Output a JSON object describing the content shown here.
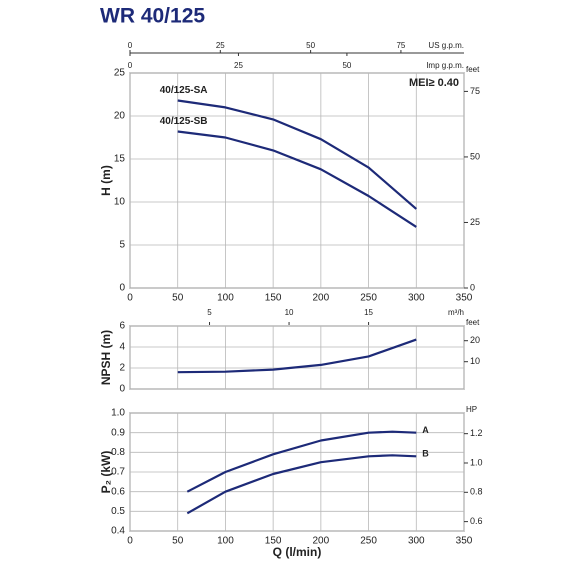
{
  "chart_data": [
    {
      "type": "line",
      "title": "WR 40/125",
      "ylabel": "H (m)",
      "annotation": "MEI≥ 0.40",
      "xlim": [
        0,
        350
      ],
      "xticks": [
        0,
        50,
        100,
        150,
        200,
        250,
        300,
        350
      ],
      "ylim": [
        0,
        25
      ],
      "yticks": [
        0,
        5,
        10,
        15,
        20,
        25
      ],
      "y2label": "feet",
      "y2lim": [
        0,
        82.02
      ],
      "y2ticks": [
        0,
        25,
        50,
        75
      ],
      "x2_axes": [
        {
          "label": "US g.p.m.",
          "xlim": [
            0,
            92.46
          ],
          "xticks": [
            0,
            25,
            50,
            75
          ]
        },
        {
          "label": "Imp g.p.m.",
          "xlim": [
            0,
            76.99
          ],
          "xticks": [
            0,
            25,
            50
          ]
        }
      ],
      "grid": true,
      "series": [
        {
          "name": "40/125-SA",
          "color": "#1d2a78",
          "x": [
            50,
            100,
            150,
            200,
            250,
            300
          ],
          "values": [
            21.8,
            21.0,
            19.6,
            17.3,
            14.0,
            9.2
          ]
        },
        {
          "name": "40/125-SB",
          "color": "#1d2a78",
          "x": [
            50,
            100,
            150,
            200,
            250,
            300
          ],
          "values": [
            18.2,
            17.5,
            16.0,
            13.8,
            10.7,
            7.1
          ]
        }
      ]
    },
    {
      "type": "line",
      "ylabel": "NPSH (m)",
      "xlim": [
        0,
        350
      ],
      "xticks": [
        0,
        50,
        100,
        150,
        200,
        250,
        300,
        350
      ],
      "ylim": [
        0,
        6
      ],
      "yticks": [
        0,
        2,
        4,
        6
      ],
      "y2label": "feet",
      "y2lim": [
        -3,
        27
      ],
      "y2ticks": [
        10,
        20
      ],
      "x2_axes": [
        {
          "label": "m³/h",
          "xlim": [
            0,
            21
          ],
          "xticks": [
            5,
            10,
            15
          ]
        }
      ],
      "grid": true,
      "series": [
        {
          "color": "#1d2a78",
          "x": [
            50,
            100,
            150,
            200,
            250,
            300
          ],
          "values": [
            1.6,
            1.65,
            1.85,
            2.3,
            3.1,
            4.7
          ]
        }
      ]
    },
    {
      "type": "line",
      "ylabel": "P₂ (kW)",
      "xlabel": "Q (l/min)",
      "xlim": [
        0,
        350
      ],
      "xticks": [
        0,
        50,
        100,
        150,
        200,
        250,
        300,
        350
      ],
      "ylim": [
        0.4,
        1.0
      ],
      "yticks": [
        0.4,
        0.5,
        0.6,
        0.7,
        0.8,
        0.9,
        {
          "value": 1,
          "label": "1.0"
        }
      ],
      "y2label": "HP",
      "y2lim": [
        0.536,
        1.341
      ],
      "y2ticks": [
        0.6,
        0.8,
        {
          "value": 1,
          "label": "1.0"
        },
        1.2
      ],
      "grid": true,
      "series": [
        {
          "name": "A",
          "color": "#1d2a78",
          "x": [
            60,
            100,
            150,
            200,
            250,
            275,
            300
          ],
          "values": [
            0.6,
            0.7,
            0.79,
            0.86,
            0.9,
            0.905,
            0.9
          ]
        },
        {
          "name": "B",
          "color": "#1d2a78",
          "x": [
            60,
            100,
            150,
            200,
            250,
            275,
            300
          ],
          "values": [
            0.49,
            0.6,
            0.69,
            0.75,
            0.78,
            0.785,
            0.78
          ]
        }
      ]
    }
  ]
}
